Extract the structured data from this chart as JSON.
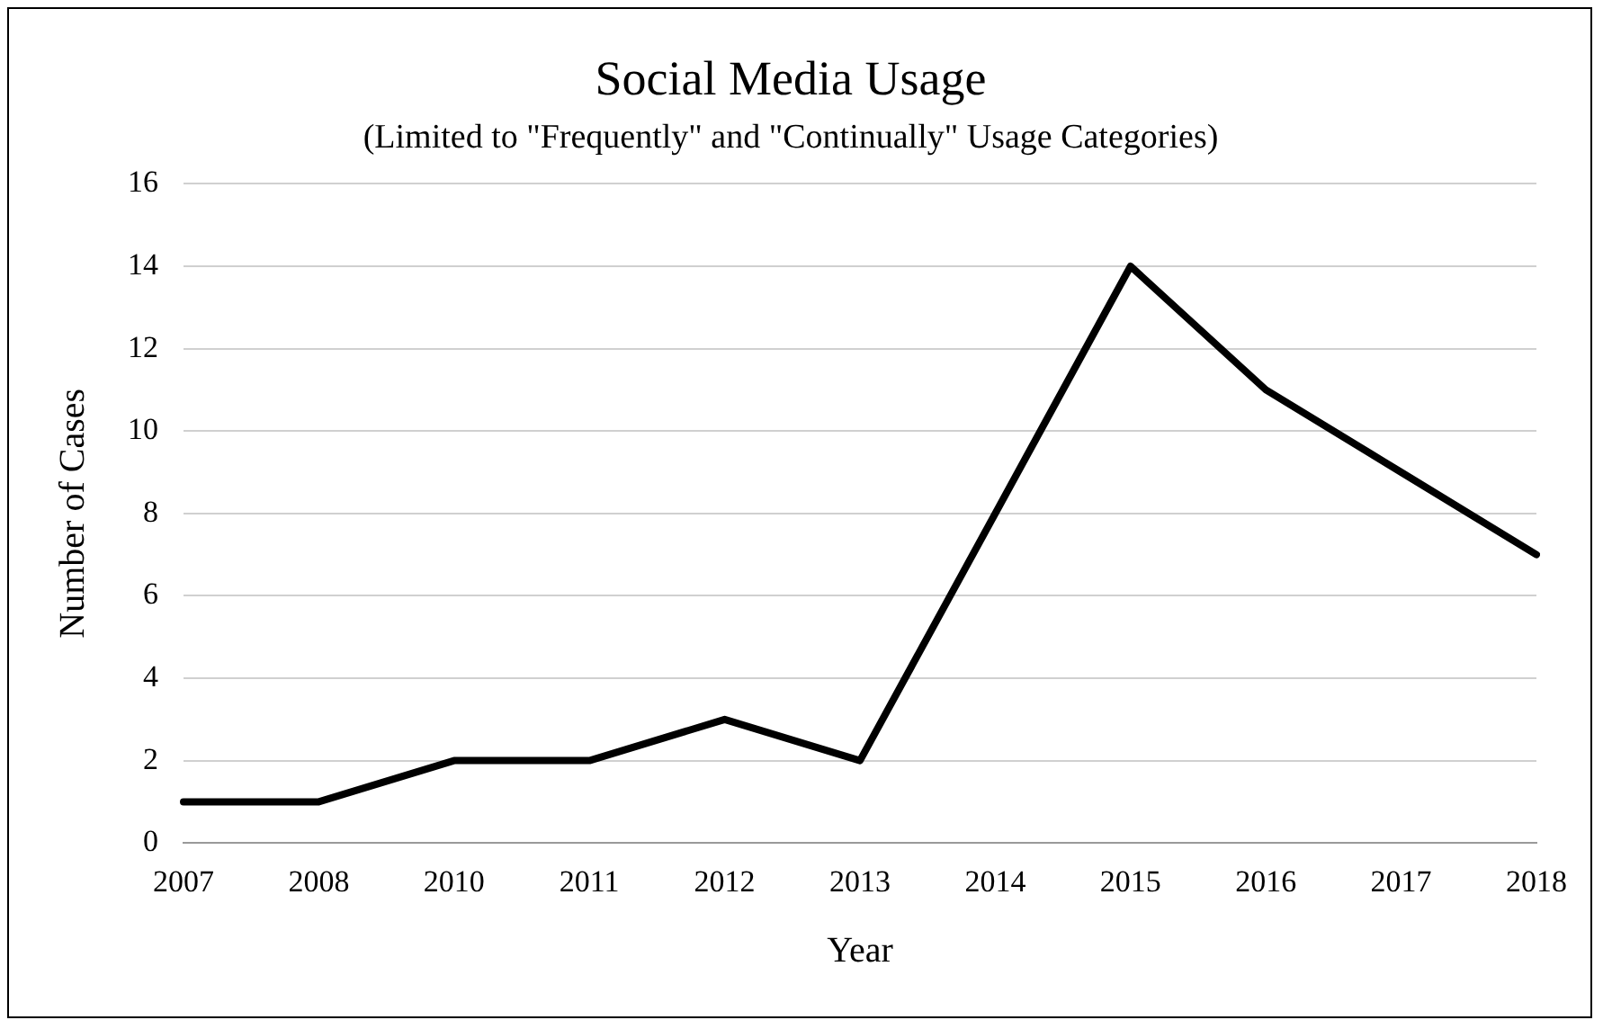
{
  "chart_data": {
    "type": "line",
    "title": "Social Media Usage",
    "subtitle": "(Limited to \"Frequently\" and \"Continually\" Usage Categories)",
    "xlabel": "Year",
    "ylabel": "Number of Cases",
    "categories": [
      "2007",
      "2008",
      "2010",
      "2011",
      "2012",
      "2013",
      "2014",
      "2015",
      "2016",
      "2017",
      "2018"
    ],
    "series": [
      {
        "color": "#000000",
        "values": [
          1,
          1,
          2,
          2,
          3,
          2,
          8,
          14,
          11,
          9,
          7
        ]
      }
    ],
    "ylim": [
      0,
      16
    ],
    "yticks": [
      0,
      2,
      4,
      6,
      8,
      10,
      12,
      14,
      16
    ],
    "grid": "y",
    "legend": false,
    "marker": "none",
    "line_style": "solid"
  }
}
